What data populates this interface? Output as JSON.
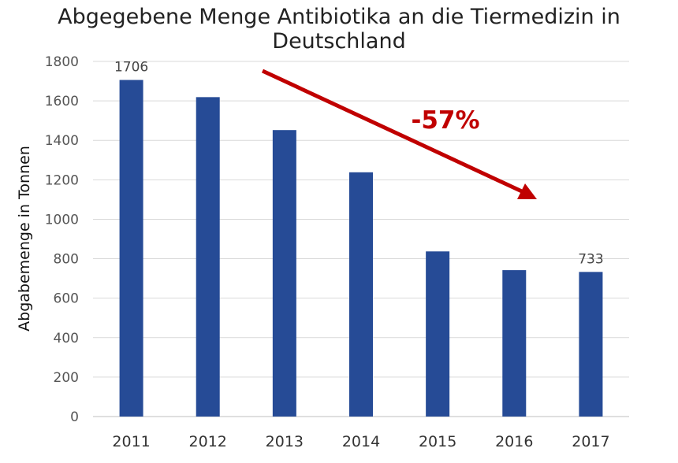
{
  "chart_data": {
    "type": "bar",
    "title": "Abgegebene Menge Antibiotika an die Tiermedizin in Deutschland",
    "xlabel": "",
    "ylabel": "Abgabemenge in Tonnen",
    "categories": [
      "2011",
      "2012",
      "2013",
      "2014",
      "2015",
      "2016",
      "2017"
    ],
    "values": [
      1706,
      1619,
      1452,
      1238,
      837,
      742,
      733
    ],
    "ylim": [
      0,
      1800
    ],
    "yticks": [
      0,
      200,
      400,
      600,
      800,
      1000,
      1200,
      1400,
      1600,
      1800
    ],
    "data_labels": {
      "0": "1706",
      "6": "733"
    },
    "annotation": "-57%",
    "grid": "horizontal",
    "colors": {
      "bar": "#264b96",
      "arrow": "#c00000",
      "grid": "#d9d9d9"
    }
  }
}
